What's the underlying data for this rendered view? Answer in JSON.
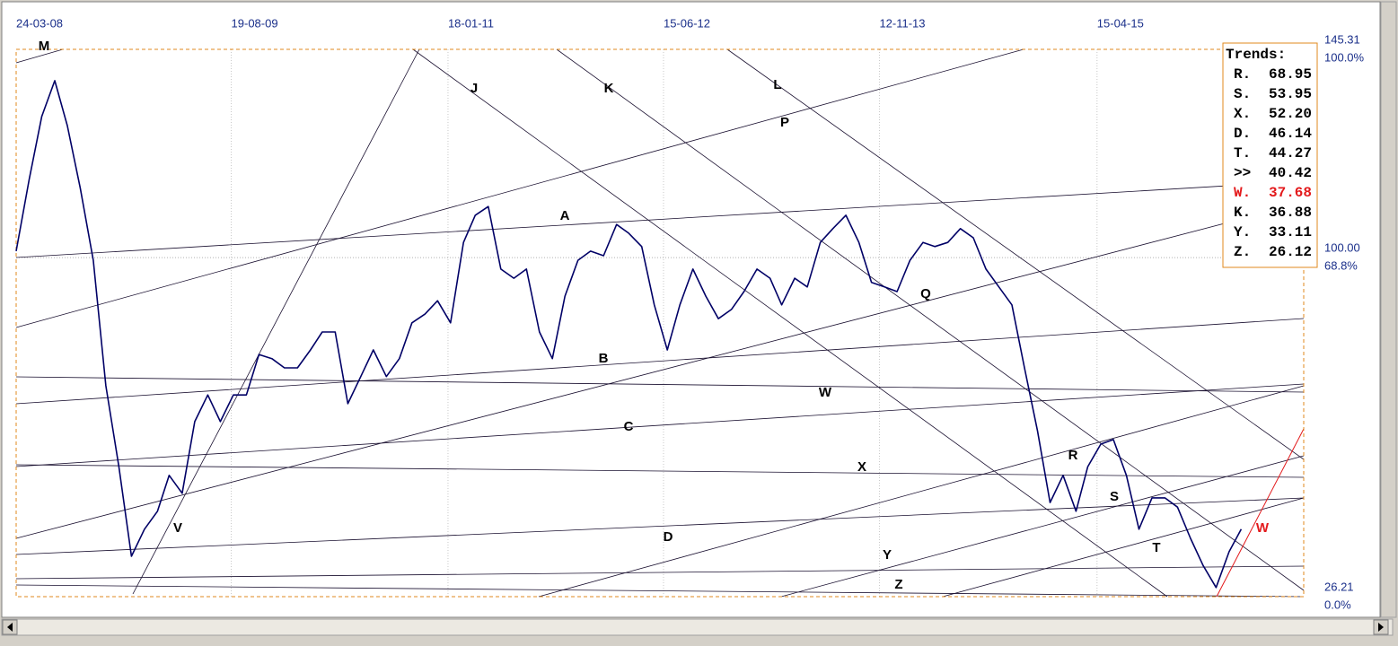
{
  "chart_data": {
    "type": "line",
    "x": [
      "2008-03-24",
      "2008-04-24",
      "2008-05-24",
      "2008-06-24",
      "2008-07-24",
      "2008-08-24",
      "2008-09-24",
      "2008-10-24",
      "2008-11-24",
      "2008-12-24",
      "2009-01-24",
      "2009-02-24",
      "2009-03-24",
      "2009-04-24",
      "2009-05-24",
      "2009-06-24",
      "2009-07-24",
      "2009-08-24",
      "2009-09-24",
      "2009-10-24",
      "2009-11-24",
      "2009-12-24",
      "2010-01-24",
      "2010-02-24",
      "2010-03-24",
      "2010-04-24",
      "2010-05-24",
      "2010-06-24",
      "2010-07-24",
      "2010-08-24",
      "2010-09-24",
      "2010-10-24",
      "2010-11-24",
      "2010-12-24",
      "2011-01-24",
      "2011-02-24",
      "2011-03-24",
      "2011-04-24",
      "2011-05-24",
      "2011-06-24",
      "2011-07-24",
      "2011-08-24",
      "2011-09-24",
      "2011-10-24",
      "2011-11-24",
      "2011-12-24",
      "2012-01-24",
      "2012-02-24",
      "2012-03-24",
      "2012-04-24",
      "2012-05-24",
      "2012-06-24",
      "2012-07-24",
      "2012-08-24",
      "2012-09-24",
      "2012-10-24",
      "2012-11-24",
      "2012-12-24",
      "2013-01-24",
      "2013-02-24",
      "2013-03-24",
      "2013-04-24",
      "2013-05-24",
      "2013-06-24",
      "2013-07-24",
      "2013-08-24",
      "2013-09-24",
      "2013-10-24",
      "2013-11-24",
      "2013-12-24",
      "2014-01-24",
      "2014-02-24",
      "2014-03-24",
      "2014-04-24",
      "2014-05-24",
      "2014-06-24",
      "2014-07-24",
      "2014-08-24",
      "2014-09-24",
      "2014-10-24",
      "2014-11-24",
      "2014-12-24",
      "2015-01-24",
      "2015-02-24",
      "2015-03-24",
      "2015-04-24",
      "2015-05-24",
      "2015-06-24",
      "2015-07-24",
      "2015-08-24",
      "2015-09-24",
      "2015-10-24",
      "2015-11-24",
      "2015-12-24",
      "2016-01-24",
      "2016-02-24",
      "2016-03-24"
    ],
    "series": [
      {
        "color": "#000066",
        "values": [
          101.4,
          117.0,
          130.7,
          138.5,
          128.7,
          115.1,
          99.4,
          72.1,
          54.5,
          35.0,
          40.9,
          44.8,
          52.6,
          48.7,
          64.3,
          70.1,
          64.3,
          70.1,
          70.1,
          78.9,
          78.0,
          76.0,
          76.0,
          79.9,
          83.8,
          83.8,
          68.2,
          74.1,
          79.9,
          74.1,
          78.0,
          85.8,
          87.7,
          90.6,
          85.8,
          103.3,
          109.2,
          111.1,
          97.5,
          95.5,
          97.5,
          83.8,
          78.0,
          91.6,
          99.4,
          101.4,
          100.4,
          107.2,
          105.3,
          102.4,
          89.7,
          79.9,
          89.7,
          97.5,
          91.6,
          86.7,
          88.7,
          92.6,
          97.5,
          95.5,
          89.7,
          95.5,
          93.6,
          103.3,
          106.3,
          109.2,
          103.3,
          94.6,
          93.6,
          92.6,
          99.4,
          103.3,
          102.4,
          103.3,
          106.3,
          104.3,
          97.5,
          93.6,
          89.7,
          76.0,
          62.3,
          46.7,
          52.6,
          44.8,
          54.5,
          59.4,
          60.4,
          52.6,
          40.9,
          47.7,
          47.7,
          45.7,
          38.9,
          33.0,
          28.2,
          36.0,
          40.9
        ]
      }
    ],
    "xlim": [
      "2008-03-24",
      "2016-08-20"
    ],
    "xticks": [
      {
        "value": "2008-03-24",
        "label": "24-03-08"
      },
      {
        "value": "2009-08-19",
        "label": "19-08-09"
      },
      {
        "value": "2011-01-18",
        "label": "18-01-11"
      },
      {
        "value": "2012-06-15",
        "label": "15-06-12"
      },
      {
        "value": "2013-11-12",
        "label": "12-11-13"
      },
      {
        "value": "2015-04-15",
        "label": "15-04-15"
      }
    ],
    "ylim": [
      26.21,
      145.31
    ],
    "yticks": [
      145.31,
      {
        "value": 100,
        "label": "100.00"
      },
      26.21
    ],
    "ytick_notes": [
      "100.0%",
      "68.8%",
      "0.0%"
    ],
    "grid": true,
    "annotations": [
      {
        "text": "M",
        "color": "#000000"
      },
      {
        "text": "J",
        "color": "#000000"
      },
      {
        "text": "K",
        "color": "#000000"
      },
      {
        "text": "L",
        "color": "#000000"
      },
      {
        "text": "P",
        "color": "#000000"
      },
      {
        "text": "A",
        "color": "#000000"
      },
      {
        "text": "Q",
        "color": "#000000"
      },
      {
        "text": "B",
        "color": "#000000"
      },
      {
        "text": "W",
        "color": "#000000"
      },
      {
        "text": "C",
        "color": "#000000"
      },
      {
        "text": "X",
        "color": "#000000"
      },
      {
        "text": "R",
        "color": "#000000"
      },
      {
        "text": "S",
        "color": "#000000"
      },
      {
        "text": "V",
        "color": "#000000"
      },
      {
        "text": "D",
        "color": "#000000"
      },
      {
        "text": "Y",
        "color": "#000000"
      },
      {
        "text": "T",
        "color": "#000000"
      },
      {
        "text": "Z",
        "color": "#000000"
      },
      {
        "text": "W",
        "color": "#e31a1c"
      }
    ]
  },
  "trends_box": {
    "title": "Trends:",
    "rows": [
      [
        "R.",
        "68.95"
      ],
      [
        "S.",
        "53.95"
      ],
      [
        "X.",
        "52.20"
      ],
      [
        "D.",
        "46.14"
      ],
      [
        "T.",
        "44.27"
      ],
      [
        ">>",
        "40.42"
      ],
      [
        "W.",
        "37.68"
      ],
      [
        "K.",
        "36.88"
      ],
      [
        "Y.",
        "33.11"
      ],
      [
        "Z.",
        "26.12"
      ]
    ],
    "highlight_row": 6,
    "highlight_color": "#e31a1c"
  }
}
